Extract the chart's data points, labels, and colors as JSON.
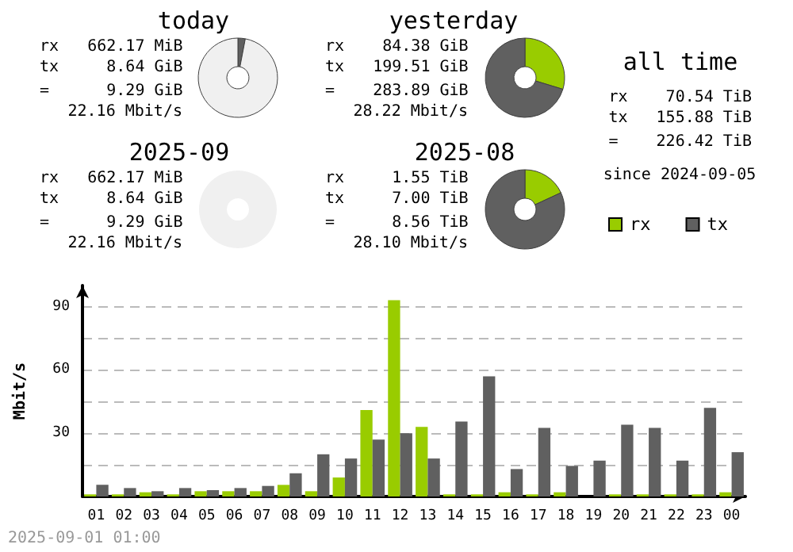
{
  "chart_data": [
    {
      "type": "donut",
      "title": "today",
      "annotations": [
        "rx   662.17 MiB",
        "tx     8.64 GiB",
        "=      9.29 GiB",
        "22.16 Mbit/s"
      ],
      "categories": [
        null,
        null,
        null
      ],
      "values": [
        null,
        3,
        97
      ],
      "colors": [
        "#99cc00",
        "#606060",
        "#f0f0f0"
      ]
    },
    {
      "type": "donut",
      "title": "yesterday",
      "annotations": [
        "rx    84.38 GiB",
        "tx   199.51 GiB",
        "=    283.89 GiB",
        "28.22 Mbit/s"
      ],
      "categories": [
        null,
        null
      ],
      "values": [
        29.7,
        70.3
      ],
      "colors": [
        "#99cc00",
        "#606060"
      ]
    },
    {
      "type": "other",
      "title": "all time",
      "annotations": [
        "rx    70.54 TiB",
        "tx   155.88 TiB",
        "=    226.42 TiB",
        "since 2024-09-05"
      ]
    },
    {
      "type": "other",
      "title": "2025-09",
      "annotations": [
        "rx   662.17 MiB",
        "tx     8.64 GiB",
        "=      9.29 GiB",
        "22.16 Mbit/s"
      ]
    },
    {
      "type": "donut",
      "title": "2025-08",
      "annotations": [
        "rx     1.55 TiB",
        "tx     7.00 TiB",
        "=      8.56 TiB",
        "28.10 Mbit/s"
      ],
      "categories": [
        null,
        null
      ],
      "values": [
        18.1,
        81.9
      ],
      "colors": [
        "#99cc00",
        "#606060"
      ]
    },
    {
      "type": "bar",
      "ylabel": "Mbit/s",
      "annotations": [
        "2025-09-01 01:00"
      ],
      "legend": "top right",
      "grid": "y",
      "categories": [
        "01",
        "02",
        "03",
        "04",
        "05",
        "06",
        "07",
        "08",
        "09",
        "10",
        "11",
        "12",
        "13",
        "14",
        "15",
        "16",
        "17",
        "18",
        "19",
        "20",
        "21",
        "22",
        "23",
        "00"
      ],
      "ylim": [
        0,
        100
      ],
      "yticks": [
        {
          "value": 15,
          "label": null
        },
        30,
        {
          "value": 45,
          "label": null
        },
        60,
        {
          "value": 75,
          "label": null
        },
        90
      ],
      "series": [
        {
          "name": "rx",
          "color": "#99cc00",
          "values": [
            1,
            1,
            2,
            1,
            2.5,
            2.5,
            2.5,
            5.5,
            2.5,
            9,
            41,
            93,
            33,
            1,
            1,
            2,
            1,
            2,
            0,
            1,
            1,
            1,
            1,
            2
          ]
        },
        {
          "name": "tx",
          "color": "#606060",
          "values": [
            5.5,
            4,
            2.5,
            4,
            3,
            4,
            5,
            11,
            20,
            18,
            27,
            30,
            18,
            35.5,
            57,
            13,
            32.5,
            14.5,
            17,
            34,
            32.5,
            17,
            42,
            21
          ]
        }
      ]
    }
  ]
}
